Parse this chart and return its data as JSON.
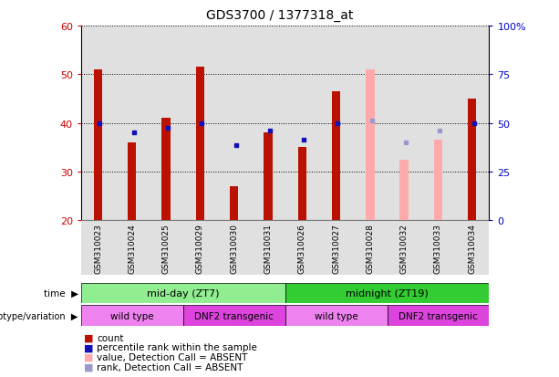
{
  "title": "GDS3700 / 1377318_at",
  "samples": [
    "GSM310023",
    "GSM310024",
    "GSM310025",
    "GSM310029",
    "GSM310030",
    "GSM310031",
    "GSM310026",
    "GSM310027",
    "GSM310028",
    "GSM310032",
    "GSM310033",
    "GSM310034"
  ],
  "count_values": [
    51,
    36,
    41,
    51.5,
    27,
    38,
    35,
    46.5,
    null,
    null,
    null,
    45
  ],
  "count_absent_values": [
    null,
    null,
    null,
    null,
    null,
    null,
    null,
    null,
    51,
    32.5,
    36.5,
    null
  ],
  "rank_values": [
    40,
    38,
    39,
    40,
    35.5,
    38.5,
    36.5,
    40,
    null,
    null,
    null,
    40
  ],
  "rank_absent_values": [
    null,
    null,
    null,
    null,
    null,
    null,
    null,
    null,
    40.5,
    36,
    38.5,
    null
  ],
  "y_min": 20,
  "y_max": 60,
  "y_ticks": [
    20,
    30,
    40,
    50,
    60
  ],
  "y2_ticks": [
    0,
    25,
    50,
    75,
    100
  ],
  "y2_tick_labels": [
    "0",
    "25",
    "50",
    "75",
    "100%"
  ],
  "bar_bottom": 20,
  "time_groups": [
    {
      "label": "mid-day (ZT7)",
      "start": 0,
      "end": 6,
      "color": "#90ee90"
    },
    {
      "label": "midnight (ZT19)",
      "start": 6,
      "end": 12,
      "color": "#33cc33"
    }
  ],
  "genotype_groups": [
    {
      "label": "wild type",
      "start": 0,
      "end": 3,
      "color": "#ee82ee"
    },
    {
      "label": "DNF2 transgenic",
      "start": 3,
      "end": 6,
      "color": "#dd44dd"
    },
    {
      "label": "wild type",
      "start": 6,
      "end": 9,
      "color": "#ee82ee"
    },
    {
      "label": "DNF2 transgenic",
      "start": 9,
      "end": 12,
      "color": "#dd44dd"
    }
  ],
  "count_color": "#bb1100",
  "count_absent_color": "#ffaaaa",
  "rank_color": "#1111bb",
  "rank_absent_color": "#9999cc",
  "grid_color": "#000000",
  "tick_label_color_left": "#cc0000",
  "tick_label_color_right": "#0000cc",
  "sample_bg_color": "#cccccc",
  "bar_width": 0.25
}
